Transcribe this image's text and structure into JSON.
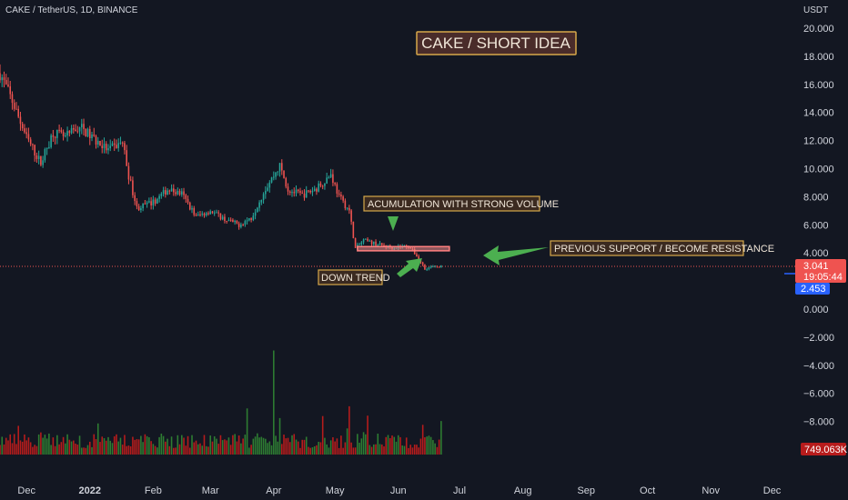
{
  "header": {
    "symbol": "CAKE / TetherUS, 1D, BINANCE",
    "currency": "USDT"
  },
  "colors": {
    "background": "#131722",
    "text": "#d1d4dc",
    "up": "#26a69a",
    "down": "#ef5350",
    "volume_up": "#2e7d32",
    "volume_down": "#b71c1c",
    "annotation_bg": "#3b2a20",
    "annotation_border": "#d7a84a",
    "title_bg": "#4a2c2a",
    "arrow": "#4caf50",
    "zone": "#f48a8a",
    "last_price": "#ef5350",
    "secondary_price": "#2962ff",
    "volume_label": "#b71c1c"
  },
  "chart_data": {
    "type": "candlestick",
    "title": "CAKE / SHORT  IDEA",
    "y_unit": "USDT",
    "ylim": [
      -10,
      21
    ],
    "y_ticks": [
      "20.000",
      "18.000",
      "16.000",
      "14.000",
      "12.000",
      "10.000",
      "8.000",
      "6.000",
      "4.000",
      "2.000",
      "0.000",
      "−2.000",
      "−4.000",
      "−6.000",
      "−8.000"
    ],
    "y_tick_values": [
      20,
      18,
      16,
      14,
      12,
      10,
      8,
      6,
      4,
      2,
      0,
      -2,
      -4,
      -6,
      -8
    ],
    "x_ticks": [
      "Dec",
      "2022",
      "Feb",
      "Mar",
      "Apr",
      "May",
      "Jun",
      "Jul",
      "Aug",
      "Sep",
      "Oct",
      "Nov",
      "Dec"
    ],
    "x_tick_dates": [
      "2021-12-01",
      "2022-01-01",
      "2022-02-01",
      "2022-03-01",
      "2022-04-01",
      "2022-05-01",
      "2022-06-01",
      "2022-07-01",
      "2022-08-01",
      "2022-09-01",
      "2022-10-01",
      "2022-11-01",
      "2022-12-01"
    ],
    "x_range": [
      "2021-11-18",
      "2022-12-07"
    ],
    "price_path": [
      [
        "2021-11-18",
        16.8
      ],
      [
        "2021-11-24",
        14.8
      ],
      [
        "2021-12-01",
        12.2
      ],
      [
        "2021-12-08",
        10.4
      ],
      [
        "2021-12-14",
        12.6
      ],
      [
        "2021-12-20",
        12.2
      ],
      [
        "2021-12-27",
        13.0
      ],
      [
        "2022-01-03",
        12.1
      ],
      [
        "2022-01-10",
        11.3
      ],
      [
        "2022-01-17",
        11.9
      ],
      [
        "2022-01-20",
        9.5
      ],
      [
        "2022-01-24",
        7.2
      ],
      [
        "2022-02-01",
        7.6
      ],
      [
        "2022-02-08",
        8.5
      ],
      [
        "2022-02-15",
        8.2
      ],
      [
        "2022-02-22",
        6.6
      ],
      [
        "2022-03-01",
        7.0
      ],
      [
        "2022-03-08",
        6.4
      ],
      [
        "2022-03-15",
        6.0
      ],
      [
        "2022-03-21",
        6.5
      ],
      [
        "2022-03-28",
        8.6
      ],
      [
        "2022-04-04",
        10.2
      ],
      [
        "2022-04-08",
        8.5
      ],
      [
        "2022-04-15",
        8.1
      ],
      [
        "2022-04-22",
        8.6
      ],
      [
        "2022-04-29",
        9.6
      ],
      [
        "2022-05-03",
        8.0
      ],
      [
        "2022-05-08",
        7.0
      ],
      [
        "2022-05-11",
        4.3
      ],
      [
        "2022-05-15",
        4.9
      ],
      [
        "2022-05-22",
        4.6
      ],
      [
        "2022-05-29",
        4.4
      ],
      [
        "2022-06-06",
        4.5
      ],
      [
        "2022-06-10",
        3.8
      ],
      [
        "2022-06-14",
        2.9
      ],
      [
        "2022-06-18",
        3.0
      ],
      [
        "2022-06-22",
        3.04
      ]
    ],
    "volume_spikes": [
      [
        "2022-04-01",
        9.7
      ],
      [
        "2022-05-08",
        4.5
      ],
      [
        "2022-03-19",
        4.3
      ],
      [
        "2022-04-04",
        3.4
      ]
    ],
    "last_price": "3.041",
    "countdown": "19:05:44",
    "secondary_price": "2.453",
    "volume_value": "749.063K",
    "resistance_zone": {
      "low": 4.15,
      "high": 4.45,
      "x_from": "2022-05-12",
      "x_to": "2022-06-26"
    },
    "annotations": [
      "ACUMULATION  WITH STRONG VOLUME",
      "PREVIOUS SUPPORT / BECOME RESISTANCE",
      "DOWN TREND"
    ],
    "grid": false
  }
}
